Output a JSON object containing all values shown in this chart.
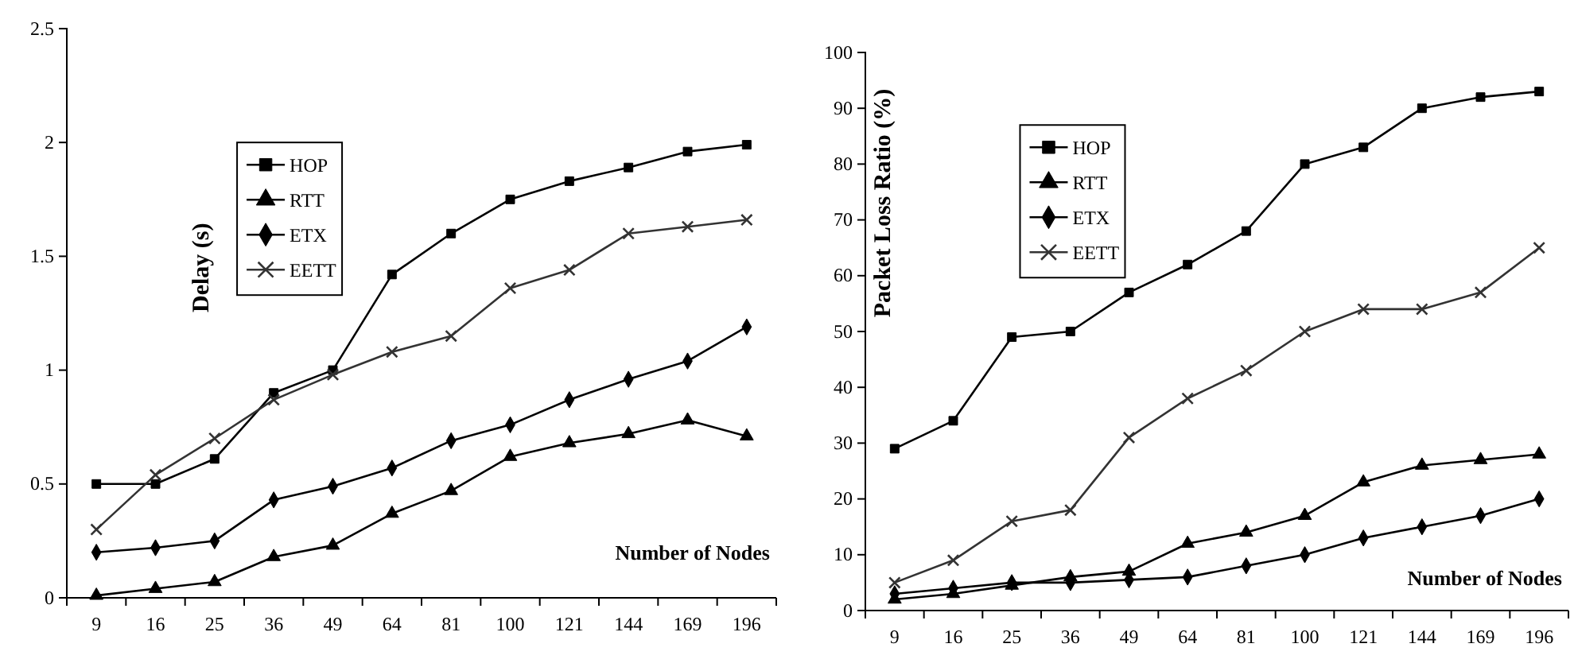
{
  "chart_data": [
    {
      "type": "line",
      "ylabel": "Delay (s)",
      "xlabel": "Number of Nodes",
      "categories": [
        "9",
        "16",
        "25",
        "36",
        "49",
        "64",
        "81",
        "100",
        "121",
        "144",
        "169",
        "196"
      ],
      "ylim": [
        0,
        2.5
      ],
      "yticks": [
        0,
        0.5,
        1,
        1.5,
        2,
        2.5
      ],
      "grid": false,
      "legend": "top left",
      "line_style": "solid",
      "series": [
        {
          "name": "HOP",
          "color": "#000000",
          "marker": "square",
          "values": [
            0.5,
            0.5,
            0.61,
            0.9,
            1.0,
            1.42,
            1.6,
            1.75,
            1.83,
            1.89,
            1.96,
            1.99
          ]
        },
        {
          "name": "RTT",
          "color": "#000000",
          "marker": "triangle",
          "values": [
            0.01,
            0.04,
            0.07,
            0.18,
            0.23,
            0.37,
            0.47,
            0.62,
            0.68,
            0.72,
            0.78,
            0.71
          ]
        },
        {
          "name": "ETX",
          "color": "#000000",
          "marker": "diamond",
          "values": [
            0.2,
            0.22,
            0.25,
            0.43,
            0.49,
            0.57,
            0.69,
            0.76,
            0.87,
            0.96,
            1.04,
            1.19
          ]
        },
        {
          "name": "EETT",
          "color": "#333333",
          "marker": "cross",
          "values": [
            0.3,
            0.54,
            0.7,
            0.87,
            0.98,
            1.08,
            1.15,
            1.36,
            1.44,
            1.6,
            1.63,
            1.66
          ]
        }
      ]
    },
    {
      "type": "line",
      "ylabel": "Packet Loss Ratio (%)",
      "xlabel": "Number of Nodes",
      "categories": [
        "9",
        "16",
        "25",
        "36",
        "49",
        "64",
        "81",
        "100",
        "121",
        "144",
        "169",
        "196"
      ],
      "ylim": [
        0,
        100
      ],
      "yticks": [
        0,
        10,
        20,
        30,
        40,
        50,
        60,
        70,
        80,
        90,
        100
      ],
      "grid": false,
      "legend": "top left",
      "line_style": "solid",
      "series": [
        {
          "name": "HOP",
          "color": "#000000",
          "marker": "square",
          "values": [
            29,
            34,
            49,
            50,
            57,
            62,
            68,
            80,
            83,
            90,
            92,
            93
          ]
        },
        {
          "name": "RTT",
          "color": "#000000",
          "marker": "triangle",
          "values": [
            2,
            3,
            4.5,
            6,
            7,
            12,
            14,
            17,
            23,
            26,
            27,
            28
          ]
        },
        {
          "name": "ETX",
          "color": "#000000",
          "marker": "diamond",
          "values": [
            3,
            4,
            5,
            5,
            5.5,
            6,
            8,
            10,
            13,
            15,
            17,
            20
          ]
        },
        {
          "name": "EETT",
          "color": "#333333",
          "marker": "cross",
          "values": [
            5,
            9,
            16,
            18,
            31,
            38,
            43,
            50,
            54,
            54,
            57,
            65
          ]
        }
      ]
    }
  ]
}
